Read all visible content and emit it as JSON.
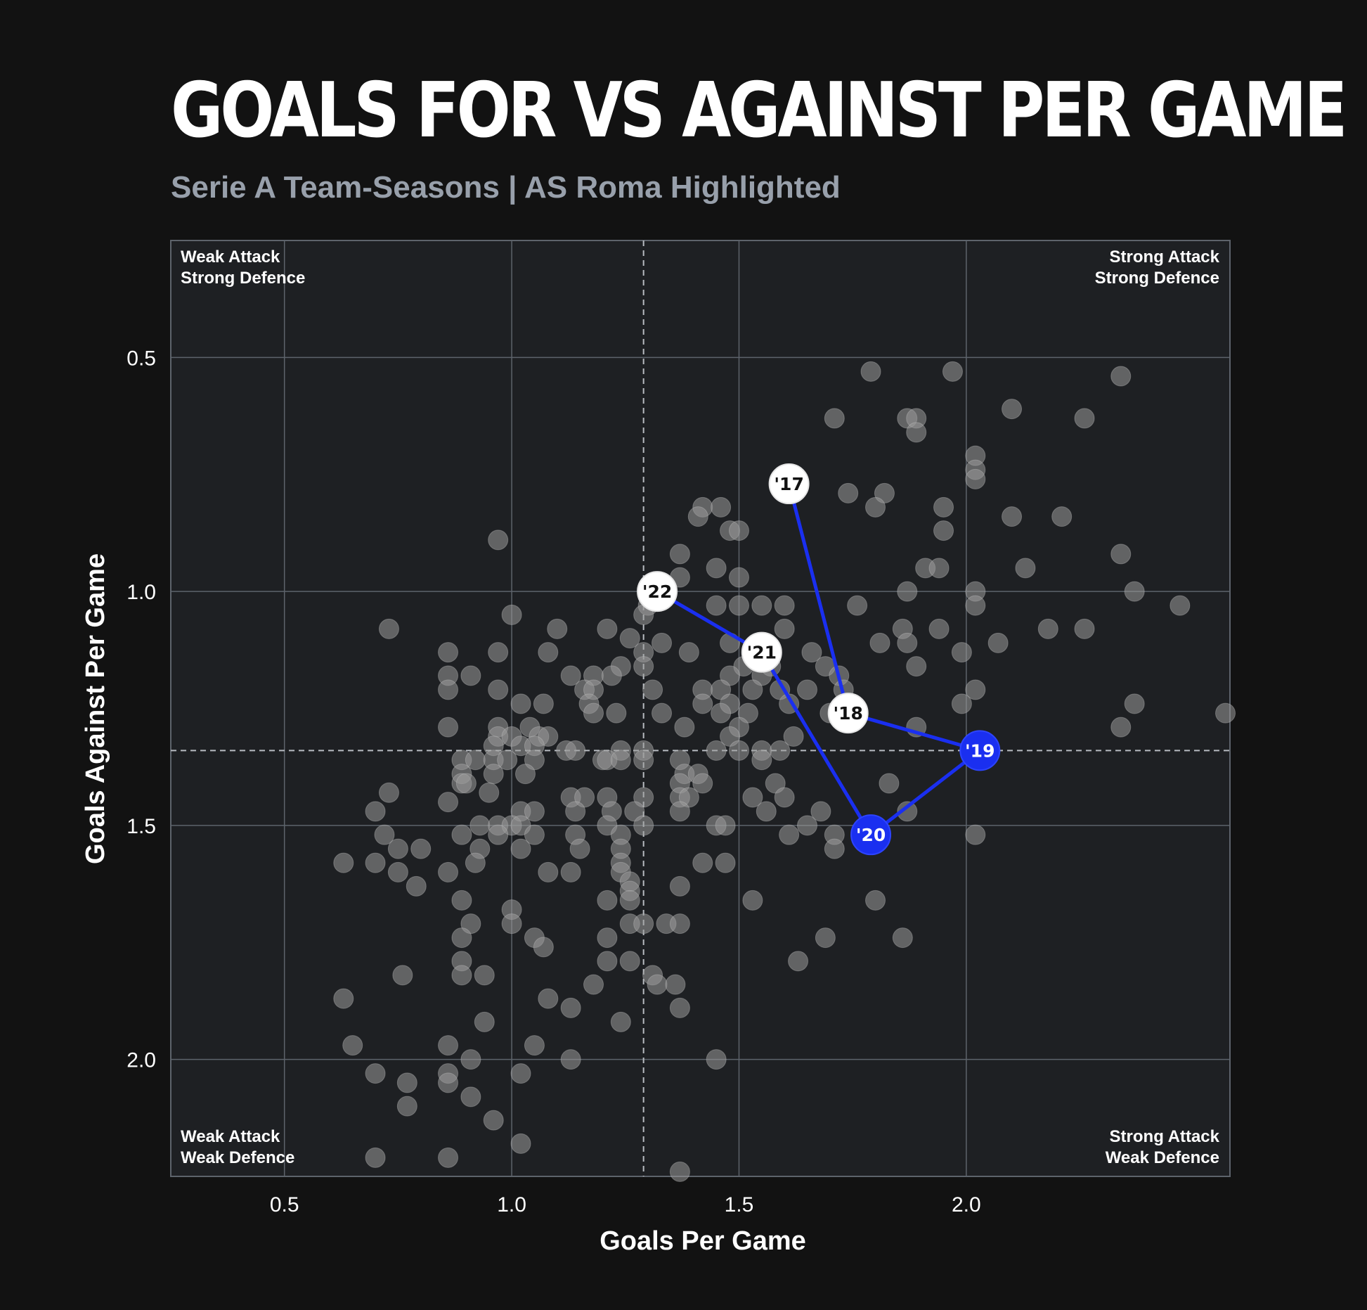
{
  "header": {
    "title": "GOALS FOR VS AGAINST PER GAME",
    "subtitle": "Serie A Team-Seasons | AS Roma Highlighted"
  },
  "colors": {
    "background": "#121212",
    "plot_background": "#1e2023",
    "grid": "#5d636b",
    "points": "#9a9a9a",
    "roma_highlight": "#1a2ff0",
    "roma_label_default": "#ffffff"
  },
  "chart_data": {
    "type": "scatter",
    "xlabel": "Goals Per Game",
    "ylabel": "Goals Against Per Game",
    "xlim": [
      0.25,
      2.58
    ],
    "ylim": [
      2.25,
      0.25
    ],
    "y_inverted": true,
    "x_ticks": [
      "0.5",
      "1.0",
      "1.5",
      "2.0"
    ],
    "x_tick_values": [
      0.5,
      1.0,
      1.5,
      2.0
    ],
    "y_ticks": [
      "0.5",
      "1.0",
      "1.5",
      "2.0"
    ],
    "y_tick_values": [
      0.5,
      1.0,
      1.5,
      2.0
    ],
    "grid": true,
    "reference_lines": {
      "x": 1.29,
      "y": 1.34
    },
    "quadrant_labels": {
      "top_left": [
        "Weak Attack",
        "Strong Defence"
      ],
      "top_right": [
        "Strong Attack",
        "Strong Defence"
      ],
      "bottom_left": [
        "Weak Attack",
        "Weak Defence"
      ],
      "bottom_right": [
        "Strong Attack",
        "Weak Defence"
      ]
    },
    "points": [
      [
        1.79,
        0.53
      ],
      [
        1.97,
        0.53
      ],
      [
        2.34,
        0.54
      ],
      [
        2.1,
        0.61
      ],
      [
        1.71,
        0.63
      ],
      [
        1.87,
        0.63
      ],
      [
        1.89,
        0.63
      ],
      [
        1.89,
        0.66
      ],
      [
        2.26,
        0.63
      ],
      [
        2.02,
        0.71
      ],
      [
        2.02,
        0.74
      ],
      [
        2.02,
        0.76
      ],
      [
        1.74,
        0.79
      ],
      [
        1.82,
        0.79
      ],
      [
        1.8,
        0.82
      ],
      [
        1.95,
        0.82
      ],
      [
        1.42,
        0.82
      ],
      [
        1.46,
        0.82
      ],
      [
        1.41,
        0.84
      ],
      [
        2.1,
        0.84
      ],
      [
        2.21,
        0.84
      ],
      [
        1.48,
        0.87
      ],
      [
        1.5,
        0.87
      ],
      [
        1.95,
        0.87
      ],
      [
        0.97,
        0.89
      ],
      [
        1.37,
        0.92
      ],
      [
        2.34,
        0.92
      ],
      [
        1.45,
        0.95
      ],
      [
        1.91,
        0.95
      ],
      [
        1.94,
        0.95
      ],
      [
        2.13,
        0.95
      ],
      [
        1.37,
        0.97
      ],
      [
        1.5,
        0.97
      ],
      [
        1.87,
        1.0
      ],
      [
        2.02,
        1.0
      ],
      [
        2.37,
        1.0
      ],
      [
        1.3,
        1.03
      ],
      [
        1.45,
        1.03
      ],
      [
        1.5,
        1.03
      ],
      [
        1.55,
        1.03
      ],
      [
        1.6,
        1.03
      ],
      [
        1.76,
        1.03
      ],
      [
        2.02,
        1.03
      ],
      [
        2.47,
        1.03
      ],
      [
        1.0,
        1.05
      ],
      [
        1.29,
        1.05
      ],
      [
        0.73,
        1.08
      ],
      [
        1.1,
        1.08
      ],
      [
        1.21,
        1.08
      ],
      [
        1.6,
        1.08
      ],
      [
        1.86,
        1.08
      ],
      [
        1.94,
        1.08
      ],
      [
        2.18,
        1.08
      ],
      [
        2.26,
        1.08
      ],
      [
        1.26,
        1.1
      ],
      [
        1.33,
        1.11
      ],
      [
        1.48,
        1.11
      ],
      [
        1.81,
        1.11
      ],
      [
        1.87,
        1.11
      ],
      [
        2.07,
        1.11
      ],
      [
        0.86,
        1.13
      ],
      [
        0.97,
        1.13
      ],
      [
        1.08,
        1.13
      ],
      [
        1.29,
        1.13
      ],
      [
        1.39,
        1.13
      ],
      [
        1.66,
        1.13
      ],
      [
        1.99,
        1.13
      ],
      [
        1.24,
        1.16
      ],
      [
        1.29,
        1.16
      ],
      [
        1.51,
        1.16
      ],
      [
        1.57,
        1.16
      ],
      [
        1.69,
        1.16
      ],
      [
        1.89,
        1.16
      ],
      [
        0.86,
        1.18
      ],
      [
        0.91,
        1.18
      ],
      [
        1.13,
        1.18
      ],
      [
        1.18,
        1.18
      ],
      [
        1.22,
        1.18
      ],
      [
        1.48,
        1.18
      ],
      [
        1.55,
        1.18
      ],
      [
        1.72,
        1.18
      ],
      [
        0.86,
        1.21
      ],
      [
        0.97,
        1.21
      ],
      [
        1.16,
        1.21
      ],
      [
        1.18,
        1.21
      ],
      [
        1.31,
        1.21
      ],
      [
        1.42,
        1.21
      ],
      [
        1.46,
        1.21
      ],
      [
        1.53,
        1.21
      ],
      [
        1.59,
        1.21
      ],
      [
        1.65,
        1.21
      ],
      [
        1.73,
        1.21
      ],
      [
        2.02,
        1.21
      ],
      [
        1.02,
        1.24
      ],
      [
        1.07,
        1.24
      ],
      [
        1.17,
        1.24
      ],
      [
        1.42,
        1.24
      ],
      [
        1.48,
        1.24
      ],
      [
        1.61,
        1.24
      ],
      [
        1.99,
        1.24
      ],
      [
        2.37,
        1.24
      ],
      [
        1.18,
        1.26
      ],
      [
        1.23,
        1.26
      ],
      [
        1.33,
        1.26
      ],
      [
        1.46,
        1.26
      ],
      [
        1.52,
        1.26
      ],
      [
        1.7,
        1.26
      ],
      [
        2.57,
        1.26
      ],
      [
        0.86,
        1.29
      ],
      [
        0.97,
        1.29
      ],
      [
        1.04,
        1.29
      ],
      [
        1.38,
        1.29
      ],
      [
        1.5,
        1.29
      ],
      [
        1.89,
        1.29
      ],
      [
        2.34,
        1.29
      ],
      [
        0.97,
        1.31
      ],
      [
        1.0,
        1.31
      ],
      [
        1.06,
        1.31
      ],
      [
        1.08,
        1.31
      ],
      [
        1.48,
        1.31
      ],
      [
        1.62,
        1.31
      ],
      [
        0.96,
        1.33
      ],
      [
        1.02,
        1.33
      ],
      [
        1.05,
        1.33
      ],
      [
        1.12,
        1.34
      ],
      [
        1.14,
        1.34
      ],
      [
        1.24,
        1.34
      ],
      [
        1.29,
        1.34
      ],
      [
        1.45,
        1.34
      ],
      [
        1.5,
        1.34
      ],
      [
        1.55,
        1.34
      ],
      [
        1.59,
        1.34
      ],
      [
        0.89,
        1.36
      ],
      [
        0.92,
        1.36
      ],
      [
        0.96,
        1.36
      ],
      [
        0.99,
        1.36
      ],
      [
        1.05,
        1.36
      ],
      [
        1.2,
        1.36
      ],
      [
        1.21,
        1.36
      ],
      [
        1.24,
        1.36
      ],
      [
        1.29,
        1.36
      ],
      [
        1.37,
        1.36
      ],
      [
        1.55,
        1.36
      ],
      [
        0.89,
        1.39
      ],
      [
        0.96,
        1.39
      ],
      [
        1.03,
        1.39
      ],
      [
        1.38,
        1.39
      ],
      [
        1.41,
        1.39
      ],
      [
        0.89,
        1.41
      ],
      [
        0.9,
        1.41
      ],
      [
        1.37,
        1.41
      ],
      [
        1.42,
        1.41
      ],
      [
        1.58,
        1.41
      ],
      [
        1.83,
        1.41
      ],
      [
        0.73,
        1.43
      ],
      [
        0.95,
        1.43
      ],
      [
        1.13,
        1.44
      ],
      [
        1.16,
        1.44
      ],
      [
        1.21,
        1.44
      ],
      [
        1.29,
        1.44
      ],
      [
        1.37,
        1.44
      ],
      [
        1.39,
        1.44
      ],
      [
        1.53,
        1.44
      ],
      [
        1.6,
        1.44
      ],
      [
        0.86,
        1.45
      ],
      [
        1.02,
        1.47
      ],
      [
        1.05,
        1.47
      ],
      [
        1.14,
        1.47
      ],
      [
        1.22,
        1.47
      ],
      [
        1.27,
        1.47
      ],
      [
        1.37,
        1.47
      ],
      [
        1.56,
        1.47
      ],
      [
        1.68,
        1.47
      ],
      [
        1.87,
        1.47
      ],
      [
        0.7,
        1.47
      ],
      [
        0.93,
        1.5
      ],
      [
        0.97,
        1.5
      ],
      [
        1.0,
        1.5
      ],
      [
        1.02,
        1.5
      ],
      [
        1.21,
        1.5
      ],
      [
        1.29,
        1.5
      ],
      [
        1.45,
        1.5
      ],
      [
        1.47,
        1.5
      ],
      [
        1.65,
        1.5
      ],
      [
        0.72,
        1.52
      ],
      [
        0.89,
        1.52
      ],
      [
        0.97,
        1.52
      ],
      [
        1.05,
        1.52
      ],
      [
        1.14,
        1.52
      ],
      [
        1.24,
        1.52
      ],
      [
        1.61,
        1.52
      ],
      [
        1.71,
        1.52
      ],
      [
        2.02,
        1.52
      ],
      [
        0.75,
        1.55
      ],
      [
        0.8,
        1.55
      ],
      [
        0.93,
        1.55
      ],
      [
        1.02,
        1.55
      ],
      [
        1.15,
        1.55
      ],
      [
        1.24,
        1.55
      ],
      [
        1.71,
        1.55
      ],
      [
        0.63,
        1.58
      ],
      [
        0.7,
        1.58
      ],
      [
        0.92,
        1.58
      ],
      [
        1.24,
        1.58
      ],
      [
        1.42,
        1.58
      ],
      [
        1.47,
        1.58
      ],
      [
        0.75,
        1.6
      ],
      [
        0.86,
        1.6
      ],
      [
        1.08,
        1.6
      ],
      [
        1.13,
        1.6
      ],
      [
        1.24,
        1.6
      ],
      [
        1.26,
        1.62
      ],
      [
        0.79,
        1.63
      ],
      [
        1.26,
        1.64
      ],
      [
        1.37,
        1.63
      ],
      [
        0.89,
        1.66
      ],
      [
        1.21,
        1.66
      ],
      [
        1.26,
        1.66
      ],
      [
        1.53,
        1.66
      ],
      [
        1.8,
        1.66
      ],
      [
        1.0,
        1.68
      ],
      [
        0.91,
        1.71
      ],
      [
        1.0,
        1.71
      ],
      [
        1.26,
        1.71
      ],
      [
        1.29,
        1.71
      ],
      [
        1.34,
        1.71
      ],
      [
        1.37,
        1.71
      ],
      [
        0.89,
        1.74
      ],
      [
        1.05,
        1.74
      ],
      [
        1.21,
        1.74
      ],
      [
        1.69,
        1.74
      ],
      [
        1.86,
        1.74
      ],
      [
        1.07,
        1.76
      ],
      [
        0.89,
        1.79
      ],
      [
        1.21,
        1.79
      ],
      [
        1.26,
        1.79
      ],
      [
        1.63,
        1.79
      ],
      [
        0.76,
        1.82
      ],
      [
        0.89,
        1.82
      ],
      [
        0.94,
        1.82
      ],
      [
        1.31,
        1.82
      ],
      [
        1.32,
        1.84
      ],
      [
        1.36,
        1.84
      ],
      [
        1.18,
        1.84
      ],
      [
        0.63,
        1.87
      ],
      [
        1.08,
        1.87
      ],
      [
        1.13,
        1.89
      ],
      [
        1.37,
        1.89
      ],
      [
        0.94,
        1.92
      ],
      [
        1.24,
        1.92
      ],
      [
        0.65,
        1.97
      ],
      [
        0.86,
        1.97
      ],
      [
        1.05,
        1.97
      ],
      [
        0.91,
        2.0
      ],
      [
        1.13,
        2.0
      ],
      [
        1.45,
        2.0
      ],
      [
        0.7,
        2.03
      ],
      [
        0.86,
        2.03
      ],
      [
        1.02,
        2.03
      ],
      [
        0.77,
        2.05
      ],
      [
        0.86,
        2.05
      ],
      [
        0.91,
        2.08
      ],
      [
        0.77,
        2.1
      ],
      [
        0.96,
        2.13
      ],
      [
        1.02,
        2.18
      ],
      [
        0.7,
        2.21
      ],
      [
        0.86,
        2.21
      ],
      [
        1.37,
        2.24
      ]
    ],
    "series": [
      {
        "name": "AS Roma",
        "labels": [
          "'17",
          "'18",
          "'19",
          "'20",
          "'21",
          "'22"
        ],
        "x": [
          1.61,
          1.74,
          2.03,
          1.79,
          1.55,
          1.32
        ],
        "y": [
          0.77,
          1.26,
          1.34,
          1.52,
          1.13,
          1.0
        ],
        "highlighted": [
          "'19",
          "'20"
        ]
      }
    ]
  }
}
